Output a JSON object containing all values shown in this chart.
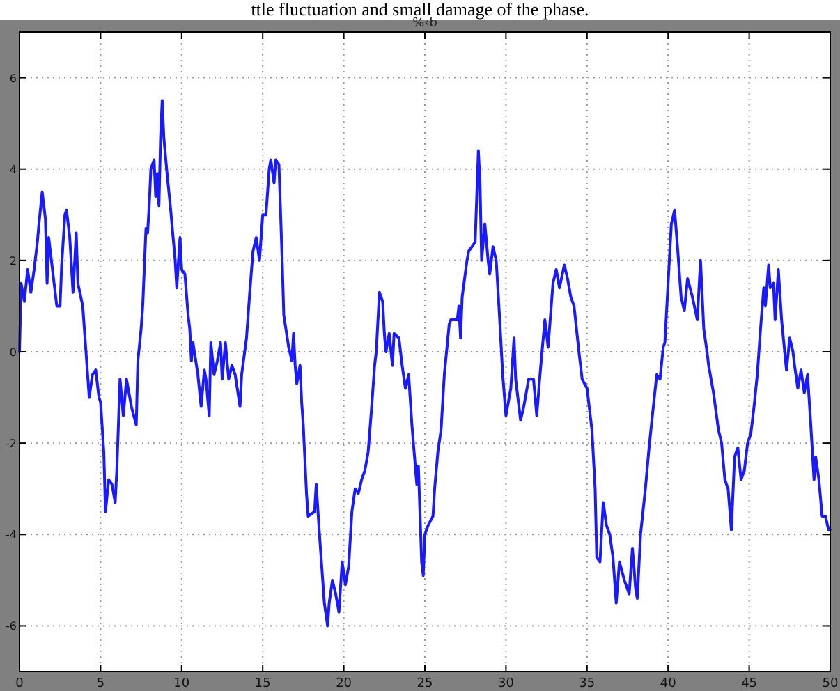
{
  "chart_data": {
    "type": "line",
    "title": "%‹b",
    "annotations": [
      "ttle fluctuation and small damage of the phase."
    ],
    "xlim": [
      0,
      50
    ],
    "xticks": [
      0,
      5,
      10,
      15,
      20,
      25,
      30,
      35,
      40,
      45,
      50
    ],
    "ylim": [
      -7,
      7
    ],
    "yticks": [
      -6,
      -4,
      -2,
      0,
      2,
      4,
      6
    ],
    "grid": true,
    "line_style": "solid",
    "series": [
      {
        "color": "#1a1aff",
        "x": [
          0,
          0.1,
          0.3,
          0.5,
          0.7,
          0.9,
          1.1,
          1.2,
          1.4,
          1.6,
          1.7,
          1.8,
          2.0,
          2.3,
          2.5,
          2.6,
          2.8,
          2.9,
          3.1,
          3.3,
          3.5,
          3.6,
          3.9,
          4.1,
          4.3,
          4.5,
          4.7,
          4.9,
          5.0,
          5.2,
          5.3,
          5.5,
          5.7,
          5.9,
          6.0,
          6.2,
          6.4,
          6.6,
          6.9,
          7.2,
          7.3,
          7.5,
          7.6,
          7.8,
          7.9,
          8.0,
          8.1,
          8.3,
          8.4,
          8.5,
          8.6,
          8.7,
          8.8,
          8.9,
          9.1,
          9.3,
          9.6,
          9.7,
          9.9,
          10.0,
          10.2,
          10.4,
          10.5,
          10.6,
          10.7,
          11.0,
          11.2,
          11.4,
          11.5,
          11.7,
          11.8,
          12.0,
          12.2,
          12.4,
          12.5,
          12.7,
          12.9,
          13.1,
          13.3,
          13.6,
          13.7,
          14.0,
          14.2,
          14.4,
          14.6,
          14.8,
          15.0,
          15.2,
          15.4,
          15.5,
          15.7,
          15.8,
          16.0,
          16.2,
          16.3,
          16.6,
          16.8,
          16.9,
          17.0,
          17.1,
          17.3,
          17.4,
          17.5,
          17.7,
          17.8,
          18.2,
          18.3,
          18.5,
          18.7,
          18.8,
          19.0,
          19.1,
          19.3,
          19.5,
          19.7,
          19.9,
          20.1,
          20.3,
          20.5,
          20.7,
          20.9,
          21.1,
          21.3,
          21.5,
          21.7,
          21.9,
          22.0,
          22.2,
          22.4,
          22.5,
          22.6,
          22.8,
          23.0,
          23.1,
          23.4,
          23.6,
          23.8,
          24.0,
          24.2,
          24.5,
          24.6,
          24.8,
          24.9,
          25.0,
          25.2,
          25.5,
          25.6,
          25.8,
          26.0,
          26.2,
          26.5,
          26.6,
          27.0,
          27.1,
          27.2,
          27.3,
          27.6,
          27.7,
          28.1,
          28.3,
          28.4,
          28.5,
          28.7,
          28.9,
          29.0,
          29.2,
          29.4,
          29.6,
          29.8,
          30.0,
          30.3,
          30.5,
          30.6,
          30.9,
          31.1,
          31.4,
          31.7,
          31.9,
          32.1,
          32.4,
          32.6,
          32.9,
          33.1,
          33.3,
          33.6,
          33.8,
          34.0,
          34.2,
          34.5,
          34.7,
          35.0,
          35.3,
          35.5,
          35.6,
          35.8,
          36.0,
          36.2,
          36.4,
          36.6,
          36.8,
          37.0,
          37.3,
          37.6,
          37.8,
          38.0,
          38.1,
          38.3,
          38.6,
          38.8,
          39.0,
          39.3,
          39.5,
          39.7,
          39.8,
          40.0,
          40.2,
          40.4,
          40.6,
          40.8,
          41.0,
          41.2,
          41.5,
          41.8,
          42.0,
          42.2,
          42.4,
          42.5,
          42.8,
          43.1,
          43.3,
          43.5,
          43.7,
          43.9,
          44.1,
          44.3,
          44.5,
          44.7,
          44.9,
          45.1,
          45.3,
          45.5,
          45.6,
          45.7,
          45.9,
          46.0,
          46.2,
          46.3,
          46.5,
          46.6,
          46.8,
          47.0,
          47.3,
          47.5,
          47.7,
          47.8,
          48.0,
          48.2,
          48.4,
          48.6,
          48.8,
          49.0,
          49.1,
          49.3,
          49.5,
          49.7,
          49.9,
          50.0
        ],
        "values": [
          0,
          1.5,
          1.1,
          1.8,
          1.3,
          1.8,
          2.4,
          2.8,
          3.5,
          2.9,
          1.5,
          2.5,
          1.9,
          1.0,
          1.0,
          1.9,
          3.0,
          3.1,
          2.5,
          1.3,
          2.6,
          1.5,
          1.0,
          0.0,
          -1.0,
          -0.5,
          -0.4,
          -1.0,
          -1.1,
          -2.2,
          -3.5,
          -2.8,
          -2.9,
          -3.3,
          -2.6,
          -0.6,
          -1.4,
          -0.6,
          -1.2,
          -1.6,
          -0.2,
          0.5,
          1.0,
          2.7,
          2.6,
          3.2,
          4.0,
          4.2,
          3.4,
          3.9,
          3.2,
          4.7,
          5.5,
          4.7,
          3.9,
          3.2,
          2.0,
          1.4,
          2.5,
          1.8,
          1.7,
          0.8,
          0.5,
          -0.2,
          0.2,
          -0.5,
          -1.2,
          -0.4,
          -0.6,
          -1.4,
          0.2,
          -0.5,
          -0.2,
          0.2,
          -0.6,
          0.2,
          -0.6,
          -0.3,
          -0.5,
          -1.2,
          -0.5,
          0.3,
          1.3,
          2.2,
          2.5,
          2.0,
          3.0,
          3.0,
          4.0,
          4.2,
          3.7,
          4.2,
          4.1,
          2.0,
          0.8,
          0.1,
          -0.2,
          0.4,
          -0.3,
          -0.7,
          -0.3,
          -1.1,
          -1.6,
          -3.1,
          -3.6,
          -3.5,
          -2.9,
          -4.0,
          -5.0,
          -5.5,
          -6.0,
          -5.5,
          -5.0,
          -5.3,
          -5.7,
          -4.6,
          -5.1,
          -4.7,
          -3.5,
          -3.0,
          -3.1,
          -2.8,
          -2.6,
          -2.2,
          -1.3,
          -0.3,
          0.0,
          1.3,
          1.1,
          0.4,
          0.0,
          0.4,
          -0.3,
          0.4,
          0.3,
          -0.3,
          -0.8,
          -0.5,
          -1.6,
          -2.9,
          -2.5,
          -4.6,
          -4.9,
          -4.0,
          -3.8,
          -3.6,
          -3.0,
          -2.2,
          -1.7,
          -0.5,
          0.6,
          0.7,
          0.7,
          1.0,
          0.3,
          1.2,
          2.0,
          2.2,
          2.4,
          4.4,
          3.7,
          2.0,
          2.8,
          2.0,
          1.7,
          2.3,
          2.0,
          0.8,
          -0.5,
          -1.4,
          -0.8,
          0.3,
          -0.6,
          -1.5,
          -1.2,
          -0.6,
          -0.6,
          -1.4,
          -0.5,
          0.7,
          0.1,
          1.5,
          1.8,
          1.4,
          1.9,
          1.6,
          1.2,
          1.0,
          0.0,
          -0.6,
          -0.8,
          -1.7,
          -3.0,
          -4.5,
          -4.6,
          -3.3,
          -3.8,
          -4.0,
          -4.5,
          -5.5,
          -4.6,
          -5.0,
          -5.3,
          -4.3,
          -5.2,
          -5.4,
          -4.0,
          -3.0,
          -2.2,
          -1.5,
          -0.5,
          -0.6,
          0.1,
          0.2,
          1.5,
          2.8,
          3.1,
          2.2,
          1.2,
          0.9,
          1.6,
          1.2,
          0.7,
          2.0,
          0.5,
          0.0,
          -0.3,
          -0.9,
          -1.7,
          -2.0,
          -2.8,
          -3.0,
          -3.9,
          -2.3,
          -2.1,
          -2.8,
          -2.6,
          -2.0,
          -1.8,
          -1.2,
          -0.5,
          0.0,
          0.5,
          1.4,
          1.0,
          1.9,
          1.4,
          1.5,
          0.7,
          1.8,
          0.7,
          -0.4,
          0.3,
          0.0,
          -0.3,
          -0.8,
          -0.4,
          -0.9,
          -0.5,
          -1.6,
          -2.8,
          -2.3,
          -2.8,
          -3.6,
          -3.6,
          -3.9,
          -3.9
        ]
      }
    ]
  }
}
